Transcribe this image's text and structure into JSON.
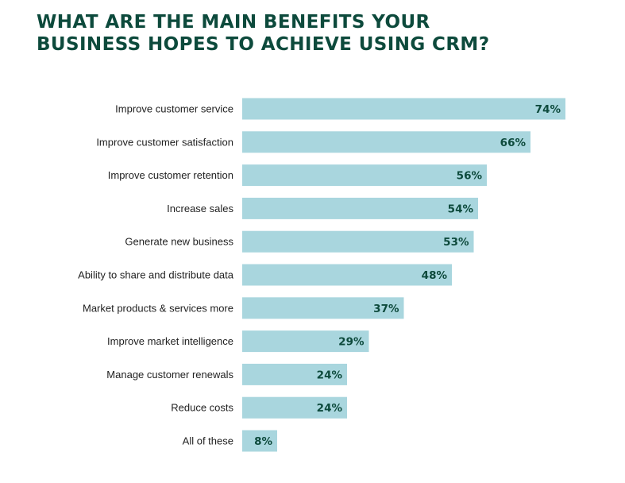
{
  "title_lines": [
    "WHAT ARE THE MAIN BENEFITS YOUR",
    "BUSINESS HOPES TO ACHIEVE USING CRM?"
  ],
  "colors": {
    "title": "#0d4a3c",
    "bar": "#a9d6de",
    "value_label": "#0d4a3c",
    "category_label": "#222222"
  },
  "chart_data": {
    "type": "bar",
    "orientation": "horizontal",
    "title": "WHAT ARE THE MAIN BENEFITS YOUR BUSINESS HOPES TO ACHIEVE USING CRM?",
    "xlabel": "",
    "ylabel": "",
    "xlim": [
      0,
      100
    ],
    "grid": false,
    "legend": "none",
    "value_suffix": "%",
    "categories": [
      "Improve customer service",
      "Improve customer satisfaction",
      "Improve customer retention",
      "Increase sales",
      "Generate new business",
      "Ability to share and distribute data",
      "Market products & services more",
      "Improve market intelligence",
      "Manage customer renewals",
      "Reduce costs",
      "All of these"
    ],
    "values": [
      74,
      66,
      56,
      54,
      53,
      48,
      37,
      29,
      24,
      24,
      8
    ]
  }
}
